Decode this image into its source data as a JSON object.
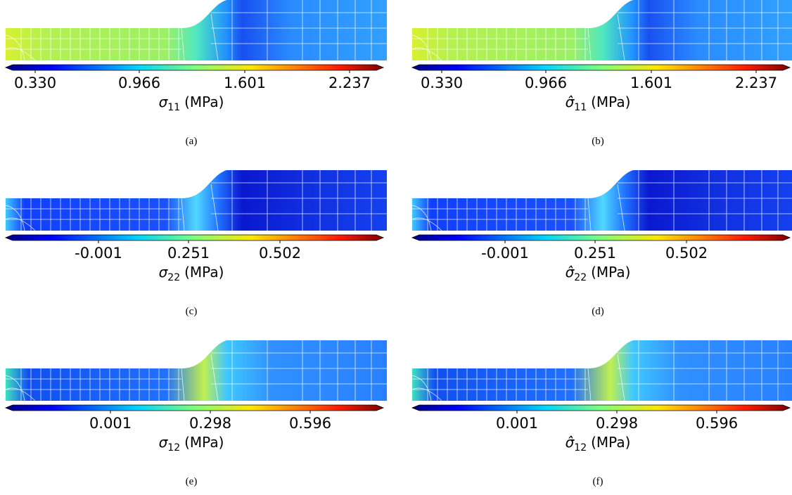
{
  "panels": [
    {
      "caption": "(a)",
      "colorbar": {
        "ticks": [
          "0.330",
          "0.966",
          "1.601",
          "2.237"
        ],
        "symbol": "σ",
        "subscript": "11",
        "unit": "(MPa)"
      }
    },
    {
      "caption": "(b)",
      "colorbar": {
        "ticks": [
          "0.330",
          "0.966",
          "1.601",
          "2.237"
        ],
        "symbol": "σ̂",
        "subscript": "11",
        "unit": "(MPa)"
      }
    },
    {
      "caption": "(c)",
      "colorbar": {
        "ticks": [
          "-0.001",
          "0.251",
          "0.502"
        ],
        "symbol": "σ",
        "subscript": "22",
        "unit": "(MPa)"
      }
    },
    {
      "caption": "(d)",
      "colorbar": {
        "ticks": [
          "-0.001",
          "0.251",
          "0.502"
        ],
        "symbol": "σ̂",
        "subscript": "22",
        "unit": "(MPa)"
      }
    },
    {
      "caption": "(e)",
      "colorbar": {
        "ticks": [
          "0.001",
          "0.298",
          "0.596"
        ],
        "symbol": "σ",
        "subscript": "12",
        "unit": "(MPa)"
      }
    },
    {
      "caption": "(f)",
      "colorbar": {
        "ticks": [
          "0.001",
          "0.298",
          "0.596"
        ],
        "symbol": "σ̂",
        "subscript": "12",
        "unit": "(MPa)"
      }
    }
  ]
}
